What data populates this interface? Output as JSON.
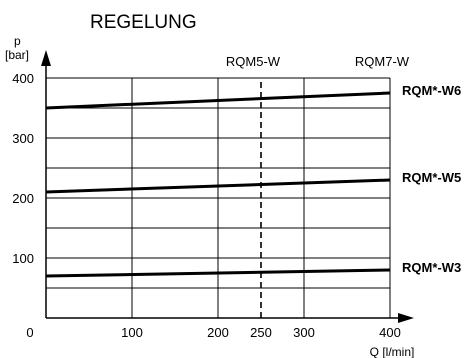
{
  "chart_data": {
    "type": "line",
    "title": "REGELUNG",
    "xlabel": "Q [l/min]",
    "ylabel_top": "p",
    "ylabel_bottom": "[bar]",
    "xlim": [
      0,
      400
    ],
    "ylim": [
      0,
      400
    ],
    "x_ticks": [
      0,
      100,
      200,
      250,
      300,
      400
    ],
    "y_ticks": [
      100,
      200,
      300,
      400
    ],
    "y_gridlines": [
      50,
      100,
      150,
      200,
      250,
      300,
      350,
      400
    ],
    "x_gridlines": [
      100,
      200,
      250,
      300,
      400
    ],
    "grid": true,
    "series": [
      {
        "name": "RQM*-W6",
        "x": [
          0,
          400
        ],
        "y": [
          350,
          375
        ]
      },
      {
        "name": "RQM*-W5",
        "x": [
          0,
          400
        ],
        "y": [
          210,
          230
        ]
      },
      {
        "name": "RQM*-W3",
        "x": [
          0,
          400
        ],
        "y": [
          70,
          80
        ]
      }
    ],
    "annotations": [
      {
        "text": "RQM5-W",
        "x": 250,
        "style": "dashed"
      },
      {
        "text": "RQM7-W",
        "x": 400,
        "style": "solid"
      }
    ]
  }
}
